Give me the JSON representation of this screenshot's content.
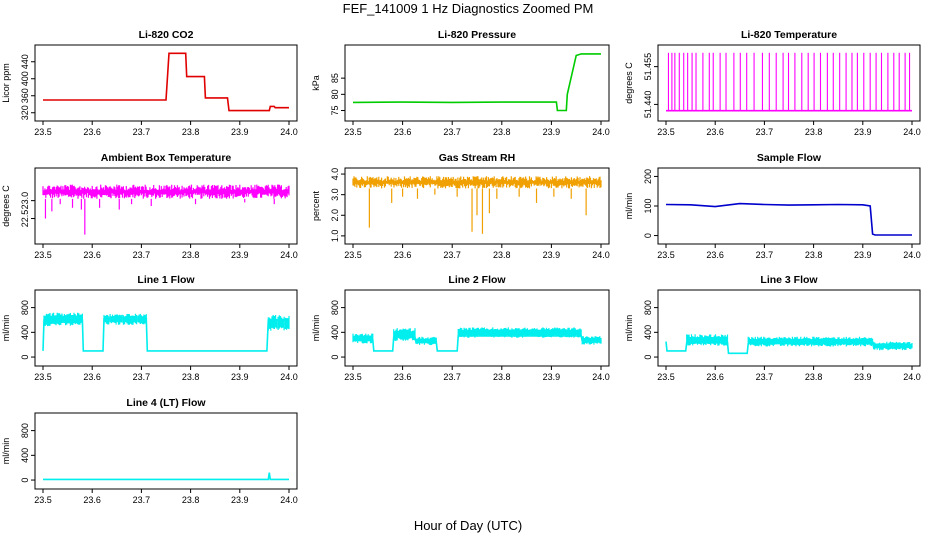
{
  "page": {
    "title": "FEF_141009  1 Hz Diagnostics Zoomed PM",
    "xlabel": "Hour of Day (UTC)"
  },
  "chart_data": [
    {
      "type": "line",
      "title": "Li-820 CO2",
      "ylabel": "Licor ppm",
      "color": "#e00000",
      "xlim": [
        23.5,
        24.0
      ],
      "ylim": [
        310,
        470
      ],
      "xticks": [
        "23.5",
        "23.6",
        "23.7",
        "23.8",
        "23.9",
        "24.0"
      ],
      "yticks": [
        {
          "v": 320,
          "label": "320"
        },
        {
          "v": 360,
          "label": "360"
        },
        {
          "v": 400,
          "label": "400"
        },
        {
          "v": 440,
          "label": "440"
        }
      ],
      "x": [
        23.5,
        23.75,
        23.756,
        23.79,
        23.792,
        23.828,
        23.83,
        23.875,
        23.878,
        23.96,
        23.962,
        23.97,
        23.972,
        24.0
      ],
      "y": [
        350,
        350,
        460,
        460,
        405,
        405,
        355,
        355,
        325,
        325,
        335,
        335,
        332,
        332
      ]
    },
    {
      "type": "line",
      "title": "Li-820 Pressure",
      "ylabel": "kPa",
      "color": "#00cc00",
      "xlim": [
        23.5,
        24.0
      ],
      "ylim": [
        73,
        94
      ],
      "xticks": [
        "23.5",
        "23.6",
        "23.7",
        "23.8",
        "23.9",
        "24.0"
      ],
      "yticks": [
        {
          "v": 75,
          "label": "75"
        },
        {
          "v": 80,
          "label": "80"
        },
        {
          "v": 85,
          "label": "85"
        }
      ],
      "x": [
        23.5,
        23.6,
        23.7,
        23.8,
        23.91,
        23.912,
        23.93,
        23.932,
        23.95,
        23.96,
        24.0
      ],
      "y": [
        77.5,
        77.6,
        77.5,
        77.6,
        77.6,
        75,
        75,
        80,
        92,
        92.5,
        92.5
      ]
    },
    {
      "type": "line",
      "title": "Li-820 Temperature",
      "ylabel": "degrees C",
      "color": "#ff00ff",
      "xlim": [
        23.5,
        24.0
      ],
      "ylim": [
        51.435,
        51.462
      ],
      "xticks": [
        "23.5",
        "23.6",
        "23.7",
        "23.8",
        "23.9",
        "24.0"
      ],
      "yticks": [
        {
          "v": 51.44,
          "label": "51.440"
        },
        {
          "v": 51.455,
          "label": "51.455"
        }
      ],
      "x": [
        23.5,
        24.0
      ],
      "y": [
        51.4375,
        51.4375
      ],
      "spike_level": 51.4605,
      "spikes": [
        23.505,
        23.512,
        23.518,
        23.527,
        23.536,
        23.544,
        23.553,
        23.561,
        23.575,
        23.588,
        23.596,
        23.61,
        23.622,
        23.638,
        23.651,
        23.664,
        23.679,
        23.696,
        23.71,
        23.724,
        23.738,
        23.749,
        23.762,
        23.776,
        23.789,
        23.801,
        23.814,
        23.828,
        23.84,
        23.853,
        23.866,
        23.878,
        23.889,
        23.902,
        23.915,
        23.927,
        23.938,
        23.951,
        23.963,
        23.974,
        23.986,
        23.995
      ]
    },
    {
      "type": "line",
      "title": "Ambient Box Temperature",
      "ylabel": "degrees C",
      "color": "#ff00ff",
      "xlim": [
        23.5,
        24.0
      ],
      "ylim": [
        21.9,
        23.8
      ],
      "xticks": [
        "23.5",
        "23.6",
        "23.7",
        "23.8",
        "23.9",
        "24.0"
      ],
      "yticks": [
        {
          "v": 22.5,
          "label": "22.5"
        },
        {
          "v": 23.0,
          "label": "23.0"
        }
      ],
      "x": [
        23.5,
        24.0
      ],
      "y": [
        23.25,
        23.25
      ],
      "band": [
        23.05,
        23.45
      ],
      "dips": [
        {
          "x": 23.505,
          "y": 22.5
        },
        {
          "x": 23.518,
          "y": 22.7
        },
        {
          "x": 23.535,
          "y": 22.9
        },
        {
          "x": 23.56,
          "y": 22.8
        },
        {
          "x": 23.578,
          "y": 22.75
        },
        {
          "x": 23.615,
          "y": 22.8
        },
        {
          "x": 23.655,
          "y": 22.75
        },
        {
          "x": 23.68,
          "y": 22.9
        },
        {
          "x": 23.72,
          "y": 22.85
        },
        {
          "x": 23.81,
          "y": 22.9
        },
        {
          "x": 23.91,
          "y": 22.95
        },
        {
          "x": 23.97,
          "y": 22.9
        },
        {
          "x": 23.585,
          "y": 22.05
        }
      ]
    },
    {
      "type": "line",
      "title": "Gas Stream RH",
      "ylabel": "percent",
      "color": "#f0a000",
      "xlim": [
        23.5,
        24.0
      ],
      "ylim": [
        0.8,
        4.1
      ],
      "xticks": [
        "23.5",
        "23.6",
        "23.7",
        "23.8",
        "23.9",
        "24.0"
      ],
      "yticks": [
        {
          "v": 1.0,
          "label": "1.0"
        },
        {
          "v": 2.0,
          "label": "2.0"
        },
        {
          "v": 3.0,
          "label": "3.0"
        },
        {
          "v": 4.0,
          "label": "4.0"
        }
      ],
      "x": [
        23.5,
        24.0
      ],
      "y": [
        3.6,
        3.6
      ],
      "band": [
        3.3,
        3.9
      ],
      "dips": [
        {
          "x": 23.533,
          "y": 1.4
        },
        {
          "x": 23.578,
          "y": 2.6
        },
        {
          "x": 23.6,
          "y": 2.9
        },
        {
          "x": 23.63,
          "y": 2.8
        },
        {
          "x": 23.665,
          "y": 3.0
        },
        {
          "x": 23.71,
          "y": 2.9
        },
        {
          "x": 23.74,
          "y": 1.2
        },
        {
          "x": 23.75,
          "y": 2.0
        },
        {
          "x": 23.761,
          "y": 1.1
        },
        {
          "x": 23.775,
          "y": 2.1
        },
        {
          "x": 23.79,
          "y": 2.8
        },
        {
          "x": 23.835,
          "y": 2.9
        },
        {
          "x": 23.87,
          "y": 2.6
        },
        {
          "x": 23.905,
          "y": 2.9
        },
        {
          "x": 23.94,
          "y": 2.8
        },
        {
          "x": 23.97,
          "y": 2.0
        }
      ]
    },
    {
      "type": "line",
      "title": "Sample Flow",
      "ylabel": "ml/min",
      "color": "#0000cc",
      "xlim": [
        23.5,
        24.0
      ],
      "ylim": [
        -15,
        215
      ],
      "xticks": [
        "23.5",
        "23.6",
        "23.7",
        "23.8",
        "23.9",
        "24.0"
      ],
      "yticks": [
        {
          "v": 0,
          "label": "0"
        },
        {
          "v": 100,
          "label": "100"
        },
        {
          "v": 200,
          "label": "200"
        }
      ],
      "x": [
        23.5,
        23.55,
        23.6,
        23.65,
        23.7,
        23.75,
        23.8,
        23.85,
        23.9,
        23.915,
        23.92,
        23.925,
        24.0
      ],
      "y": [
        105,
        104,
        98,
        108,
        105,
        103,
        104,
        105,
        104,
        100,
        5,
        2,
        2
      ]
    },
    {
      "type": "line",
      "title": "Line 1 Flow",
      "ylabel": "ml/min",
      "color": "#00eeee",
      "xlim": [
        23.5,
        24.0
      ],
      "ylim": [
        -80,
        1020
      ],
      "xticks": [
        "23.5",
        "23.6",
        "23.7",
        "23.8",
        "23.9",
        "24.0"
      ],
      "yticks": [
        {
          "v": 0,
          "label": "0"
        },
        {
          "v": 400,
          "label": "400"
        },
        {
          "v": 800,
          "label": "800"
        }
      ],
      "x": [
        23.5,
        23.502,
        23.58,
        23.582,
        23.622,
        23.624,
        23.71,
        23.712,
        23.955,
        23.958,
        24.0
      ],
      "y": [
        100,
        600,
        600,
        100,
        100,
        620,
        620,
        100,
        100,
        600,
        600
      ],
      "band_segments": [
        {
          "x0": 23.502,
          "x1": 23.58,
          "lo": 500,
          "hi": 720
        },
        {
          "x0": 23.624,
          "x1": 23.71,
          "lo": 520,
          "hi": 700
        },
        {
          "x0": 23.958,
          "x1": 24.0,
          "lo": 420,
          "hi": 680
        }
      ]
    },
    {
      "type": "line",
      "title": "Line 2 Flow",
      "ylabel": "ml/min",
      "color": "#00eeee",
      "xlim": [
        23.5,
        24.0
      ],
      "ylim": [
        -80,
        1020
      ],
      "xticks": [
        "23.5",
        "23.6",
        "23.7",
        "23.8",
        "23.9",
        "24.0"
      ],
      "yticks": [
        {
          "v": 0,
          "label": "0"
        },
        {
          "v": 400,
          "label": "400"
        },
        {
          "v": 800,
          "label": "800"
        }
      ],
      "x": [
        23.5,
        23.54,
        23.542,
        23.58,
        23.582,
        23.625,
        23.627,
        23.668,
        23.67,
        23.71,
        23.712,
        23.96,
        23.962,
        24.0
      ],
      "y": [
        280,
        280,
        100,
        100,
        320,
        320,
        240,
        240,
        100,
        100,
        340,
        340,
        260,
        260
      ],
      "band_segments": [
        {
          "x0": 23.5,
          "x1": 23.54,
          "lo": 220,
          "hi": 380
        },
        {
          "x0": 23.582,
          "x1": 23.625,
          "lo": 260,
          "hi": 470
        },
        {
          "x0": 23.627,
          "x1": 23.668,
          "lo": 190,
          "hi": 330
        },
        {
          "x0": 23.712,
          "x1": 23.96,
          "lo": 310,
          "hi": 480
        },
        {
          "x0": 23.962,
          "x1": 24.0,
          "lo": 200,
          "hi": 340
        }
      ]
    },
    {
      "type": "line",
      "title": "Line 3 Flow",
      "ylabel": "ml/min",
      "color": "#00eeee",
      "xlim": [
        23.5,
        24.0
      ],
      "ylim": [
        -80,
        1020
      ],
      "xticks": [
        "23.5",
        "23.6",
        "23.7",
        "23.8",
        "23.9",
        "24.0"
      ],
      "yticks": [
        {
          "v": 0,
          "label": "0"
        },
        {
          "v": 400,
          "label": "400"
        },
        {
          "v": 800,
          "label": "800"
        }
      ],
      "x": [
        23.5,
        23.502,
        23.54,
        23.542,
        23.625,
        23.627,
        23.665,
        23.667,
        23.92,
        23.922,
        24.0
      ],
      "y": [
        250,
        100,
        100,
        230,
        230,
        60,
        60,
        220,
        220,
        160,
        160
      ],
      "band_segments": [
        {
          "x0": 23.542,
          "x1": 23.625,
          "lo": 180,
          "hi": 370
        },
        {
          "x0": 23.667,
          "x1": 23.92,
          "lo": 170,
          "hi": 330
        },
        {
          "x0": 23.922,
          "x1": 24.0,
          "lo": 110,
          "hi": 250
        }
      ]
    },
    {
      "type": "line",
      "title": "Line 4 (LT) Flow",
      "ylabel": "ml/min",
      "color": "#00eeee",
      "xlim": [
        23.5,
        24.0
      ],
      "ylim": [
        -80,
        1020
      ],
      "xticks": [
        "23.5",
        "23.6",
        "23.7",
        "23.8",
        "23.9",
        "24.0"
      ],
      "yticks": [
        {
          "v": 0,
          "label": "0"
        },
        {
          "v": 400,
          "label": "400"
        },
        {
          "v": 800,
          "label": "800"
        }
      ],
      "x": [
        23.5,
        23.958,
        23.96,
        23.962,
        24.0
      ],
      "y": [
        10,
        10,
        120,
        10,
        10
      ]
    }
  ]
}
